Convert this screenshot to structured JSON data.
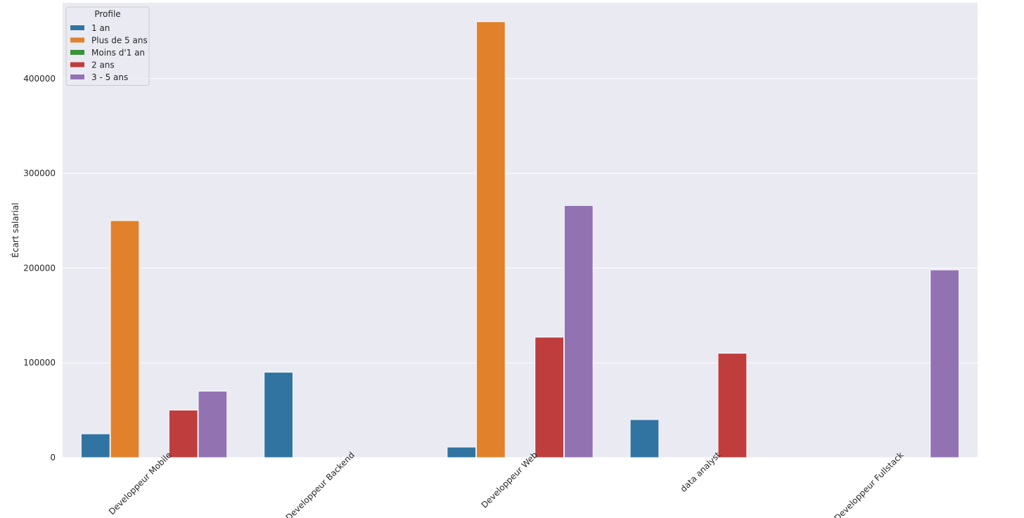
{
  "chart_data": {
    "type": "bar",
    "title": "",
    "xlabel": "",
    "ylabel": "Écart salarial",
    "ylim": [
      0,
      480000
    ],
    "yticks": [
      0,
      100000,
      200000,
      300000,
      400000
    ],
    "ytick_labels": [
      "0",
      "100000",
      "200000",
      "300000",
      "400000"
    ],
    "categories": [
      "Developpeur Mobile",
      "Developpeur Backend",
      "Developpeur Web",
      "data analyst",
      "Developpeur Fullstack"
    ],
    "x_tick_rotation": 45,
    "grid": true,
    "legend": {
      "title": "Profile",
      "position": "top-left"
    },
    "series": [
      {
        "name": "1 an",
        "color": "#3274a1",
        "values": [
          25000,
          90000,
          11000,
          40000,
          null
        ]
      },
      {
        "name": "Plus de 5 ans",
        "color": "#e1812c",
        "values": [
          250000,
          null,
          460000,
          null,
          null
        ]
      },
      {
        "name": "Moins d'1 an",
        "color": "#3a923a",
        "values": [
          null,
          null,
          null,
          null,
          null
        ]
      },
      {
        "name": "2 ans",
        "color": "#c03d3e",
        "values": [
          50000,
          null,
          127000,
          110000,
          null
        ]
      },
      {
        "name": "3 - 5 ans",
        "color": "#9372b2",
        "values": [
          70000,
          null,
          266000,
          null,
          198000
        ]
      }
    ],
    "colors": {
      "background": "#eaeaf2",
      "grid": "#ffffff",
      "text": "#262626"
    }
  }
}
